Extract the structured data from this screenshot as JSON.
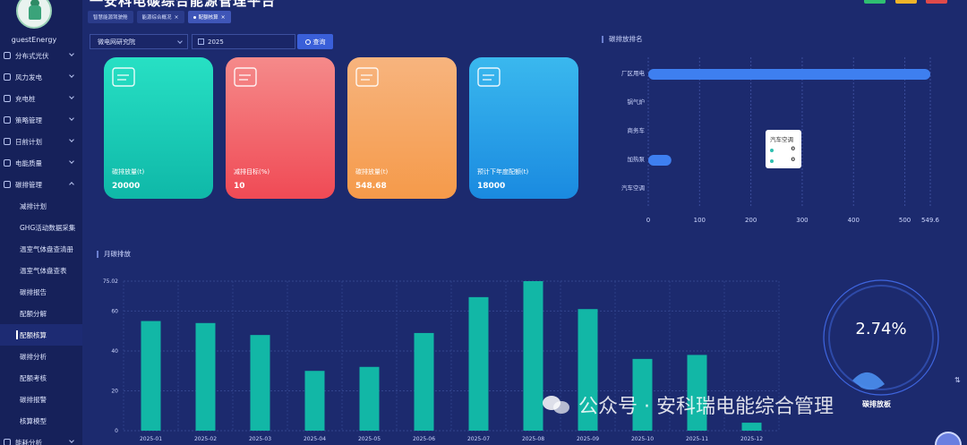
{
  "header": {
    "title": "一安科电碳综合能源管理平台",
    "tabs": [
      {
        "label": "智慧能源驾驶舱",
        "closable": false,
        "active": false
      },
      {
        "label": "能源综合概况",
        "closable": true,
        "active": false
      },
      {
        "label": "配额核算",
        "closable": true,
        "active": true
      }
    ],
    "button_colors": [
      "#2fbf71",
      "#f0b429",
      "#e04a4a"
    ]
  },
  "sidebar": {
    "username": "guestEnergy",
    "items": [
      {
        "label": "分布式光伏",
        "icon": "sun-icon",
        "expandable": true
      },
      {
        "label": "风力发电",
        "icon": "fan-icon",
        "expandable": true
      },
      {
        "label": "充电桩",
        "icon": "plug-icon",
        "expandable": true
      },
      {
        "label": "策略管理",
        "icon": "strategy-icon",
        "expandable": true
      },
      {
        "label": "日前计划",
        "icon": "calendar-icon",
        "expandable": true
      },
      {
        "label": "电能质量",
        "icon": "power-icon",
        "expandable": true
      },
      {
        "label": "碳排管理",
        "icon": "carbon-icon",
        "expandable": true,
        "open": true
      }
    ],
    "sub_items": [
      {
        "label": "减排计划",
        "active": false
      },
      {
        "label": "GHG活动数据采集",
        "active": false
      },
      {
        "label": "温室气体盘查清册",
        "active": false
      },
      {
        "label": "温室气体盘查表",
        "active": false
      },
      {
        "label": "碳排报告",
        "active": false
      },
      {
        "label": "配额分解",
        "active": false
      },
      {
        "label": "配额核算",
        "active": true
      },
      {
        "label": "碳排分析",
        "active": false
      },
      {
        "label": "配额考核",
        "active": false
      },
      {
        "label": "碳排报警",
        "active": false
      },
      {
        "label": "核算模型",
        "active": false
      }
    ],
    "bottom_item": {
      "label": "能耗分析",
      "icon": "analysis-icon"
    }
  },
  "filters": {
    "select_value": "微电网研究院",
    "date_value": "2025",
    "query_label": "查询"
  },
  "cards": [
    {
      "label": "碳排放量(t)",
      "value": "20000",
      "icon": "certificate-icon",
      "gradient": [
        "#27e0c4",
        "#0fb8a8"
      ]
    },
    {
      "label": "减排目标(%)",
      "value": "10",
      "icon": "flag-icon",
      "gradient": [
        "#f58a8a",
        "#f04a55"
      ]
    },
    {
      "label": "碳排放量(t)",
      "value": "548.68",
      "icon": "co2-icon",
      "gradient": [
        "#f7b47e",
        "#f59a4a"
      ]
    },
    {
      "label": "预计下年度配额(t)",
      "value": "18000",
      "icon": "sliders-icon",
      "gradient": [
        "#3ab8ee",
        "#1a8ae0"
      ]
    }
  ],
  "ranking": {
    "title": "碳排放排名",
    "tooltip": {
      "title": "汽车空调",
      "rows": [
        "0",
        "0"
      ]
    }
  },
  "monthly": {
    "title": "月碳排放"
  },
  "gauge": {
    "value": "2.74%",
    "label": "碳排放板",
    "fraction": 0.0274
  },
  "watermark": {
    "text": "公众号 · 安科瑞电能综合管理"
  },
  "chart_data": [
    {
      "type": "bar",
      "orientation": "horizontal",
      "title": "碳排放排名",
      "categories": [
        "厂区用电",
        "锅气炉",
        "商务车",
        "加热泵",
        "汽车空调"
      ],
      "values": [
        549.6,
        0,
        0,
        45,
        0
      ],
      "xlim": [
        0,
        549.6
      ],
      "x_ticks": [
        "0",
        "100",
        "200",
        "300",
        "400",
        "500",
        "549.6"
      ],
      "grid": true,
      "color": "#3e7ff0"
    },
    {
      "type": "bar",
      "title": "月碳排放",
      "categories": [
        "2025-01",
        "2025-02",
        "2025-03",
        "2025-04",
        "2025-05",
        "2025-06",
        "2025-07",
        "2025-08",
        "2025-09",
        "2025-10",
        "2025-11",
        "2025-12"
      ],
      "values": [
        55,
        54,
        48,
        30,
        32,
        49,
        67,
        75.02,
        61,
        36,
        38,
        4
      ],
      "ylim": [
        0,
        75.02
      ],
      "y_ticks": [
        "0",
        "20",
        "40",
        "60",
        "75.02"
      ],
      "grid": true,
      "color": "#12b7a6"
    }
  ]
}
